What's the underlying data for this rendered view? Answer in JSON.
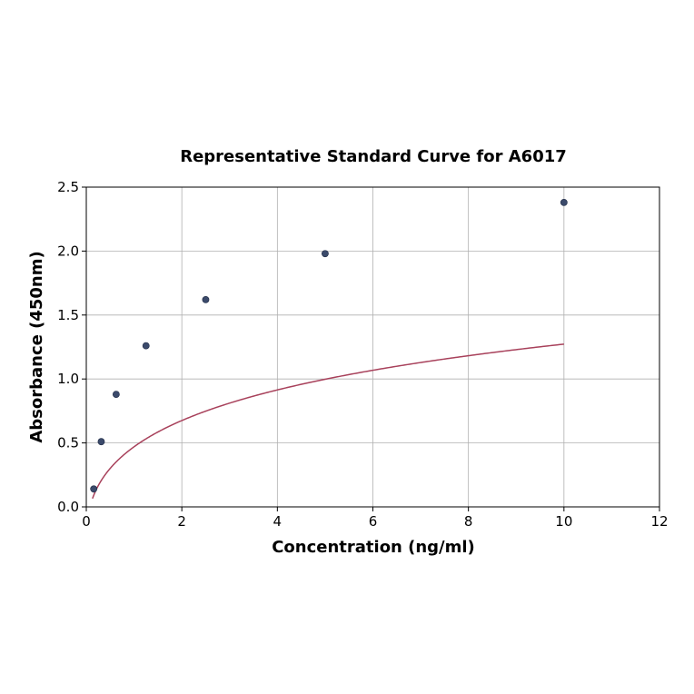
{
  "chart_data": {
    "type": "scatter",
    "title": "Representative Standard Curve for A6017",
    "xlabel": "Concentration (ng/ml)",
    "ylabel": "Absorbance (450nm)",
    "xlim": [
      0,
      12
    ],
    "ylim": [
      0,
      2.5
    ],
    "xticks": [
      0,
      2,
      4,
      6,
      8,
      10,
      12
    ],
    "yticks": [
      0.0,
      0.5,
      1.0,
      1.5,
      2.0,
      2.5
    ],
    "xtick_labels": [
      "0",
      "2",
      "4",
      "6",
      "8",
      "10",
      "12"
    ],
    "ytick_labels": [
      "0.0",
      "0.5",
      "1.0",
      "1.5",
      "2.0",
      "2.5"
    ],
    "grid": true,
    "series": [
      {
        "type": "scatter",
        "x": [
          0.156,
          0.313,
          0.625,
          1.25,
          2.5,
          5,
          10
        ],
        "y": [
          0.14,
          0.51,
          0.88,
          1.26,
          1.62,
          1.98,
          2.38
        ],
        "color": "#3b4a6b"
      },
      {
        "type": "line",
        "fit": "4PL",
        "A": -0.25,
        "B": 0.47,
        "C": 18.4,
        "D": 3.3,
        "x_range": [
          0.13,
          10
        ],
        "color": "#a8415b"
      }
    ]
  }
}
